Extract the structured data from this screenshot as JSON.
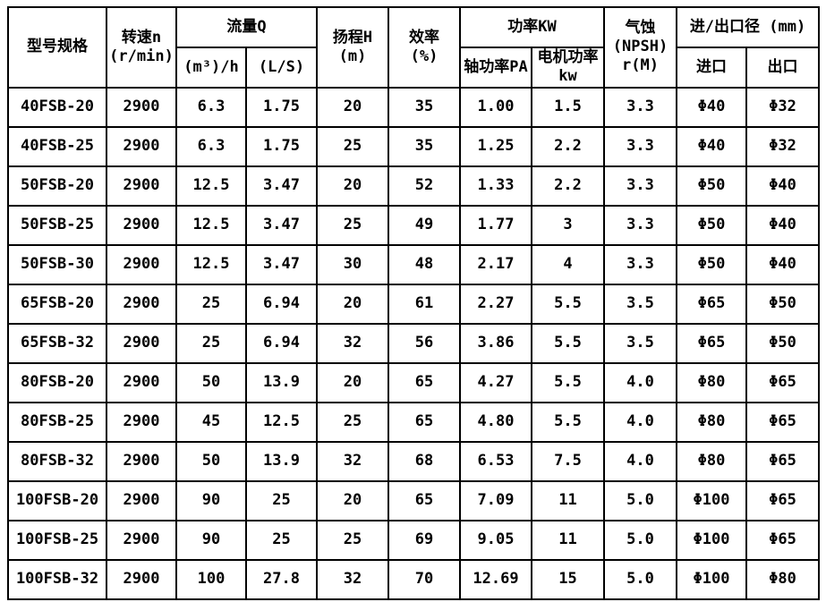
{
  "table": {
    "header": {
      "model": "型号规格",
      "speed": "转速n\n(r/min)",
      "flow": "流量Q",
      "flow_m3h": "(m³)/h",
      "flow_ls": "(L/S)",
      "head": "扬程H\n(m)",
      "efficiency": "效率\n(%)",
      "power": "功率KW",
      "power_shaft": "轴功率PA",
      "power_motor": "电机功率\nkw",
      "npsh": "气蚀\n(NPSH)\nr(M)",
      "ports": "进/出口径 (mm)",
      "inlet": "进口",
      "outlet": "出口"
    },
    "rows": [
      [
        "40FSB-20",
        "2900",
        "6.3",
        "1.75",
        "20",
        "35",
        "1.00",
        "1.5",
        "3.3",
        "Φ40",
        "Φ32"
      ],
      [
        "40FSB-25",
        "2900",
        "6.3",
        "1.75",
        "25",
        "35",
        "1.25",
        "2.2",
        "3.3",
        "Φ40",
        "Φ32"
      ],
      [
        "50FSB-20",
        "2900",
        "12.5",
        "3.47",
        "20",
        "52",
        "1.33",
        "2.2",
        "3.3",
        "Φ50",
        "Φ40"
      ],
      [
        "50FSB-25",
        "2900",
        "12.5",
        "3.47",
        "25",
        "49",
        "1.77",
        "3",
        "3.3",
        "Φ50",
        "Φ40"
      ],
      [
        "50FSB-30",
        "2900",
        "12.5",
        "3.47",
        "30",
        "48",
        "2.17",
        "4",
        "3.3",
        "Φ50",
        "Φ40"
      ],
      [
        "65FSB-20",
        "2900",
        "25",
        "6.94",
        "20",
        "61",
        "2.27",
        "5.5",
        "3.5",
        "Φ65",
        "Φ50"
      ],
      [
        "65FSB-32",
        "2900",
        "25",
        "6.94",
        "32",
        "56",
        "3.86",
        "5.5",
        "3.5",
        "Φ65",
        "Φ50"
      ],
      [
        "80FSB-20",
        "2900",
        "50",
        "13.9",
        "20",
        "65",
        "4.27",
        "5.5",
        "4.0",
        "Φ80",
        "Φ65"
      ],
      [
        "80FSB-25",
        "2900",
        "45",
        "12.5",
        "25",
        "65",
        "4.80",
        "5.5",
        "4.0",
        "Φ80",
        "Φ65"
      ],
      [
        "80FSB-32",
        "2900",
        "50",
        "13.9",
        "32",
        "68",
        "6.53",
        "7.5",
        "4.0",
        "Φ80",
        "Φ65"
      ],
      [
        "100FSB-20",
        "2900",
        "90",
        "25",
        "20",
        "65",
        "7.09",
        "11",
        "5.0",
        "Φ100",
        "Φ65"
      ],
      [
        "100FSB-25",
        "2900",
        "90",
        "25",
        "25",
        "69",
        "9.05",
        "11",
        "5.0",
        "Φ100",
        "Φ65"
      ],
      [
        "100FSB-32",
        "2900",
        "100",
        "27.8",
        "32",
        "70",
        "12.69",
        "15",
        "5.0",
        "Φ100",
        "Φ80"
      ]
    ]
  }
}
